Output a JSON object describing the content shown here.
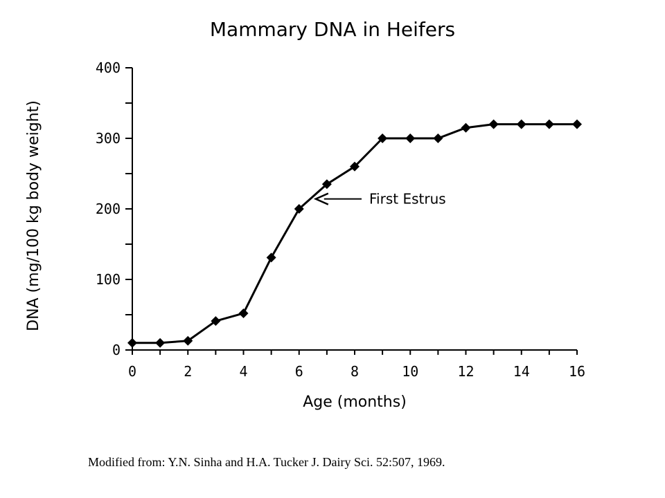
{
  "chart_data": {
    "type": "line",
    "title": "Mammary DNA in Heifers",
    "xlabel": "Age (months)",
    "ylabel": "DNA (mg/100 kg body weight)",
    "xlim": [
      0,
      16
    ],
    "ylim": [
      0,
      400
    ],
    "xticks": [
      0,
      2,
      4,
      6,
      8,
      10,
      12,
      14,
      16
    ],
    "yticks": [
      0,
      100,
      200,
      300,
      400
    ],
    "grid": false,
    "series": [
      {
        "x": [
          0,
          1,
          2,
          3,
          4,
          5,
          6,
          7,
          8,
          9,
          10,
          11,
          12,
          13,
          14,
          15,
          16
        ],
        "values": [
          10,
          10,
          13,
          41,
          52,
          131,
          200,
          235,
          260,
          300,
          300,
          300,
          315,
          320,
          320,
          320,
          320
        ]
      }
    ],
    "annotations": [
      {
        "text": "First Estrus",
        "x": 6.5,
        "y": 217
      }
    ]
  },
  "source_note": "Modified from: Y.N. Sinha and H.A. Tucker J. Dairy Sci. 52:507, 1969."
}
